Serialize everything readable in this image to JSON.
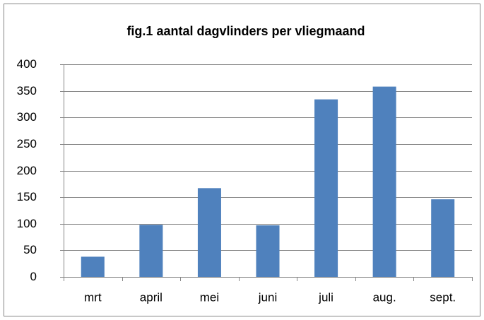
{
  "chart_data": {
    "type": "bar",
    "title": "fig.1 aantal dagvlinders per vliegmaand",
    "categories": [
      "mrt",
      "april",
      "mei",
      "juni",
      "juli",
      "aug.",
      "sept."
    ],
    "values": [
      38,
      98,
      167,
      97,
      334,
      358,
      146
    ],
    "color": "#4f81bd",
    "ylim": [
      0,
      400
    ],
    "yticks": [
      0,
      50,
      100,
      150,
      200,
      250,
      300,
      350,
      400
    ],
    "grid": true
  }
}
